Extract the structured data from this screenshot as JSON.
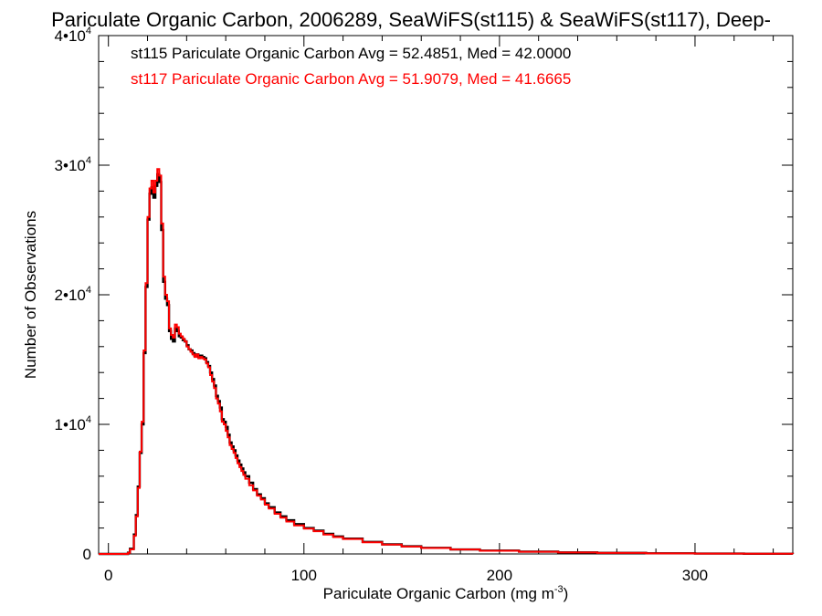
{
  "chart_data": {
    "type": "histogram",
    "title": "Pariculate Organic Carbon, 2006289, SeaWiFS(st115) & SeaWiFS(st117), Deep-",
    "xlabel": {
      "text": "Pariculate Organic Carbon (mg m",
      "sup": "-3",
      "close": ")"
    },
    "ylabel": "Number of Observations",
    "xlim": [
      -5,
      350
    ],
    "ylim": [
      0,
      40000
    ],
    "x_ticks": [
      {
        "value": 0,
        "label": "0"
      },
      {
        "value": 100,
        "label": "100"
      },
      {
        "value": 200,
        "label": "200"
      },
      {
        "value": 300,
        "label": "300"
      }
    ],
    "y_ticks": [
      {
        "value": 0,
        "label": "0",
        "sup": ""
      },
      {
        "value": 10000,
        "label": "1•10",
        "sup": "4"
      },
      {
        "value": 20000,
        "label": "2•10",
        "sup": "4"
      },
      {
        "value": 30000,
        "label": "3•10",
        "sup": "4"
      },
      {
        "value": 40000,
        "label": "4•10",
        "sup": "4"
      }
    ],
    "x_minor_step": 20,
    "y_minor_step": 2000,
    "annotations": [
      {
        "text": "st115 Pariculate Organic Carbon Avg = 52.4851, Med = 42.0000",
        "color": "#000000"
      },
      {
        "text": "st117 Pariculate Organic Carbon Avg = 51.9079, Med = 41.6665",
        "color": "#ff0000"
      }
    ],
    "series": [
      {
        "color": "#000000",
        "points": [
          [
            -5,
            0
          ],
          [
            8,
            0
          ],
          [
            10,
            100
          ],
          [
            11,
            400
          ],
          [
            13,
            1500
          ],
          [
            14,
            3000
          ],
          [
            15,
            5200
          ],
          [
            16,
            7800
          ],
          [
            17,
            10000
          ],
          [
            18,
            15500
          ],
          [
            19,
            20600
          ],
          [
            20,
            25800
          ],
          [
            21,
            27800
          ],
          [
            22,
            28300
          ],
          [
            23,
            27500
          ],
          [
            24,
            28400
          ],
          [
            25,
            29300
          ],
          [
            26,
            28700
          ],
          [
            27,
            25000
          ],
          [
            28,
            21000
          ],
          [
            29,
            19700
          ],
          [
            30,
            19200
          ],
          [
            31,
            17200
          ],
          [
            32,
            16600
          ],
          [
            33,
            16400
          ],
          [
            34,
            17400
          ],
          [
            35,
            17200
          ],
          [
            36,
            16800
          ],
          [
            37,
            16700
          ],
          [
            38,
            16500
          ],
          [
            39,
            16400
          ],
          [
            40,
            16100
          ],
          [
            41,
            15800
          ],
          [
            42,
            15700
          ],
          [
            43,
            15500
          ],
          [
            44,
            15300
          ],
          [
            45,
            15400
          ],
          [
            46,
            15200
          ],
          [
            47,
            15300
          ],
          [
            48,
            15200
          ],
          [
            49,
            15100
          ],
          [
            50,
            14800
          ],
          [
            51,
            14500
          ],
          [
            52,
            14000
          ],
          [
            53,
            13500
          ],
          [
            54,
            13000
          ],
          [
            55,
            12200
          ],
          [
            56,
            11800
          ],
          [
            57,
            11300
          ],
          [
            58,
            10400
          ],
          [
            59,
            10200
          ],
          [
            60,
            9800
          ],
          [
            61,
            9200
          ],
          [
            62,
            8600
          ],
          [
            63,
            8300
          ],
          [
            64,
            8000
          ],
          [
            65,
            7600
          ],
          [
            66,
            7200
          ],
          [
            67,
            6900
          ],
          [
            68,
            6600
          ],
          [
            69,
            6300
          ],
          [
            70,
            6000
          ],
          [
            72,
            5500
          ],
          [
            74,
            5000
          ],
          [
            76,
            4600
          ],
          [
            78,
            4300
          ],
          [
            80,
            3900
          ],
          [
            82,
            3600
          ],
          [
            85,
            3200
          ],
          [
            88,
            2900
          ],
          [
            91,
            2600
          ],
          [
            95,
            2300
          ],
          [
            100,
            2000
          ],
          [
            105,
            1800
          ],
          [
            110,
            1550
          ],
          [
            115,
            1350
          ],
          [
            120,
            1180
          ],
          [
            130,
            930
          ],
          [
            140,
            740
          ],
          [
            150,
            590
          ],
          [
            160,
            470
          ],
          [
            175,
            350
          ],
          [
            190,
            260
          ],
          [
            210,
            180
          ],
          [
            230,
            120
          ],
          [
            250,
            80
          ],
          [
            275,
            50
          ],
          [
            300,
            30
          ],
          [
            325,
            15
          ],
          [
            350,
            8
          ]
        ]
      },
      {
        "color": "#ff0000",
        "points": [
          [
            -5,
            0
          ],
          [
            8,
            0
          ],
          [
            10,
            80
          ],
          [
            11,
            350
          ],
          [
            13,
            1400
          ],
          [
            14,
            2900
          ],
          [
            15,
            5100
          ],
          [
            16,
            7900
          ],
          [
            17,
            10200
          ],
          [
            18,
            15700
          ],
          [
            19,
            20900
          ],
          [
            20,
            26000
          ],
          [
            21,
            28200
          ],
          [
            22,
            28800
          ],
          [
            23,
            27900
          ],
          [
            24,
            28800
          ],
          [
            25,
            29700
          ],
          [
            26,
            29200
          ],
          [
            27,
            25500
          ],
          [
            28,
            21400
          ],
          [
            29,
            20000
          ],
          [
            30,
            19500
          ],
          [
            31,
            17400
          ],
          [
            32,
            16900
          ],
          [
            33,
            16700
          ],
          [
            34,
            17700
          ],
          [
            35,
            17500
          ],
          [
            36,
            17000
          ],
          [
            37,
            16800
          ],
          [
            38,
            16600
          ],
          [
            39,
            16400
          ],
          [
            40,
            16000
          ],
          [
            41,
            15800
          ],
          [
            42,
            15600
          ],
          [
            43,
            15400
          ],
          [
            44,
            15200
          ],
          [
            45,
            15400
          ],
          [
            46,
            15100
          ],
          [
            47,
            15200
          ],
          [
            48,
            15100
          ],
          [
            49,
            15000
          ],
          [
            50,
            14700
          ],
          [
            51,
            14400
          ],
          [
            52,
            13800
          ],
          [
            53,
            13300
          ],
          [
            54,
            12800
          ],
          [
            55,
            12000
          ],
          [
            56,
            11600
          ],
          [
            57,
            11000
          ],
          [
            58,
            10200
          ],
          [
            59,
            10000
          ],
          [
            60,
            9500
          ],
          [
            61,
            9000
          ],
          [
            62,
            8400
          ],
          [
            63,
            8100
          ],
          [
            64,
            7800
          ],
          [
            65,
            7400
          ],
          [
            66,
            7000
          ],
          [
            67,
            6700
          ],
          [
            68,
            6400
          ],
          [
            69,
            6100
          ],
          [
            70,
            5800
          ],
          [
            72,
            5300
          ],
          [
            74,
            4900
          ],
          [
            76,
            4500
          ],
          [
            78,
            4200
          ],
          [
            80,
            3800
          ],
          [
            82,
            3500
          ],
          [
            85,
            3100
          ],
          [
            88,
            2800
          ],
          [
            91,
            2500
          ],
          [
            95,
            2200
          ],
          [
            100,
            1950
          ],
          [
            105,
            1750
          ],
          [
            110,
            1500
          ],
          [
            115,
            1300
          ],
          [
            120,
            1150
          ],
          [
            130,
            900
          ],
          [
            140,
            720
          ],
          [
            150,
            570
          ],
          [
            160,
            460
          ],
          [
            175,
            340
          ],
          [
            190,
            250
          ],
          [
            210,
            170
          ],
          [
            230,
            115
          ],
          [
            250,
            75
          ],
          [
            275,
            45
          ],
          [
            300,
            28
          ],
          [
            325,
            14
          ],
          [
            350,
            7
          ]
        ]
      }
    ]
  }
}
